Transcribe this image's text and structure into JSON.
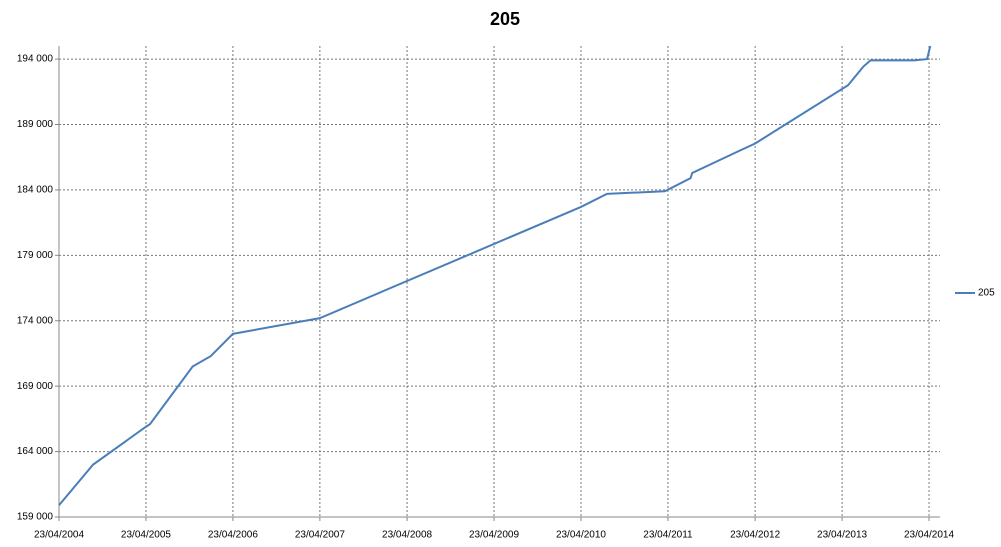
{
  "chart_data": {
    "type": "line",
    "title": "205",
    "x": [
      "2004-04-23",
      "2004-09-13",
      "2005-04-23",
      "2005-05-10",
      "2005-11-05",
      "2006-01-20",
      "2006-04-23",
      "2007-04-23",
      "2010-04-23",
      "2010-08-10",
      "2011-04-10",
      "2011-07-27",
      "2011-08-03",
      "2012-02-06",
      "2012-04-23",
      "2013-05-18",
      "2013-07-20",
      "2013-08-20",
      "2014-02-20",
      "2014-04-15",
      "2014-04-28"
    ],
    "series": [
      {
        "name": "205",
        "color": "#4a7ebb",
        "values": [
          159900,
          163000,
          165900,
          166100,
          170500,
          171300,
          173000,
          174200,
          182700,
          183700,
          183900,
          184900,
          185300,
          186900,
          187550,
          192000,
          193400,
          193900,
          193900,
          194000,
          195000
        ]
      }
    ],
    "xlim": [
      "2004-04-23",
      "2014-06-08"
    ],
    "xticks": [
      {
        "value": "2004-04-23",
        "label": "23/04/2004"
      },
      {
        "value": "2005-04-23",
        "label": "23/04/2005"
      },
      {
        "value": "2006-04-23",
        "label": "23/04/2006"
      },
      {
        "value": "2007-04-23",
        "label": "23/04/2007"
      },
      {
        "value": "2008-04-23",
        "label": "23/04/2008"
      },
      {
        "value": "2009-04-23",
        "label": "23/04/2009"
      },
      {
        "value": "2010-04-23",
        "label": "23/04/2010"
      },
      {
        "value": "2011-04-23",
        "label": "23/04/2011"
      },
      {
        "value": "2012-04-23",
        "label": "23/04/2012"
      },
      {
        "value": "2013-04-23",
        "label": "23/04/2013"
      },
      {
        "value": "2014-04-23",
        "label": "23/04/2014"
      }
    ],
    "ylim": [
      159000,
      195000
    ],
    "yticks": [
      {
        "value": 159000,
        "label": "159 000"
      },
      {
        "value": 164000,
        "label": "164 000"
      },
      {
        "value": 169000,
        "label": "169 000"
      },
      {
        "value": 174000,
        "label": "174 000"
      },
      {
        "value": 179000,
        "label": "179 000"
      },
      {
        "value": 184000,
        "label": "184 000"
      },
      {
        "value": 189000,
        "label": "189 000"
      },
      {
        "value": 194000,
        "label": "194 000"
      }
    ],
    "grid": true
  }
}
